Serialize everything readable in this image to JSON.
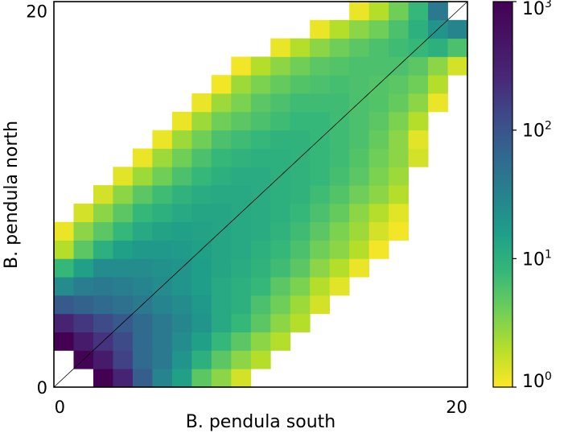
{
  "chart_data": {
    "type": "heatmap",
    "title": "",
    "xlabel": "B. pendula south",
    "ylabel": "B. pendula north",
    "xlim": [
      0,
      21
    ],
    "ylim": [
      0,
      21
    ],
    "x_ticks": [
      {
        "label": "0",
        "value": 0.3
      },
      {
        "label": "20",
        "value": 21
      }
    ],
    "y_ticks": [
      {
        "label": "0",
        "value": 0
      },
      {
        "label": "20",
        "value": 20.5
      }
    ],
    "diagonal_line": true,
    "colormap": "viridis_r",
    "color_scale": "log",
    "color_range": [
      1,
      1000
    ],
    "colorbar": {
      "position": "right",
      "ticks": [
        {
          "base": "10",
          "exp": "0",
          "value": 1
        },
        {
          "base": "10",
          "exp": "1",
          "value": 10
        },
        {
          "base": "10",
          "exp": "2",
          "value": 100
        },
        {
          "base": "10",
          "exp": "3",
          "value": 1000
        }
      ]
    },
    "rows": [
      [
        0,
        0,
        1000,
        300,
        80,
        30,
        15,
        5,
        3,
        1.5,
        0,
        0,
        0,
        0,
        0,
        0,
        0,
        0,
        0,
        0,
        0
      ],
      [
        0,
        900,
        400,
        150,
        60,
        40,
        20,
        10,
        5,
        3,
        2,
        0,
        0,
        0,
        0,
        0,
        0,
        0,
        0,
        0,
        0
      ],
      [
        1000,
        400,
        200,
        120,
        60,
        40,
        25,
        15,
        8,
        5,
        3,
        2,
        0,
        0,
        0,
        0,
        0,
        0,
        0,
        0,
        0
      ],
      [
        300,
        180,
        120,
        90,
        60,
        40,
        28,
        20,
        12,
        8,
        5,
        3,
        2,
        0,
        0,
        0,
        0,
        0,
        0,
        0,
        0
      ],
      [
        90,
        70,
        60,
        50,
        40,
        30,
        25,
        18,
        12,
        10,
        6,
        4,
        2.5,
        1.5,
        0,
        0,
        0,
        0,
        0,
        0,
        0
      ],
      [
        25,
        35,
        40,
        35,
        30,
        25,
        20,
        16,
        12,
        10,
        8,
        5,
        3.5,
        2,
        1.3,
        0,
        0,
        0,
        0,
        0,
        0
      ],
      [
        8,
        15,
        25,
        25,
        25,
        22,
        20,
        16,
        13,
        11,
        9,
        7,
        5,
        3,
        2,
        1.2,
        0,
        0,
        0,
        0,
        0
      ],
      [
        2,
        5,
        10,
        15,
        18,
        18,
        17,
        15,
        13,
        12,
        10,
        8,
        6,
        4,
        3,
        2,
        1.1,
        0,
        0,
        0,
        0
      ],
      [
        1.2,
        3,
        5,
        8,
        12,
        14,
        15,
        14,
        13,
        12,
        11,
        9,
        7,
        5,
        3.5,
        2.5,
        1.5,
        1.1,
        0,
        0,
        0
      ],
      [
        0,
        1.5,
        3,
        5,
        8,
        10,
        12,
        13,
        13,
        12,
        11,
        10,
        8,
        6,
        4.5,
        3,
        2,
        1.3,
        0,
        0,
        0
      ],
      [
        0,
        0,
        1.5,
        3,
        5,
        7,
        9,
        11,
        12,
        12,
        11,
        10,
        9,
        7,
        5.5,
        4,
        3,
        2,
        0,
        0,
        0
      ],
      [
        0,
        0,
        0,
        1.3,
        2.5,
        4,
        6,
        8,
        10,
        11,
        11,
        10,
        9,
        8,
        6.5,
        5,
        3.5,
        2.5,
        0,
        0,
        0
      ],
      [
        0,
        0,
        0,
        0,
        1.2,
        2.5,
        4,
        6,
        8,
        9,
        10,
        10,
        9,
        8,
        7,
        5.5,
        4,
        3,
        1.5,
        0,
        0
      ],
      [
        0,
        0,
        0,
        0,
        0,
        1.2,
        2.5,
        4,
        6,
        7,
        8,
        9,
        9,
        8,
        7,
        6,
        4.5,
        3,
        1.3,
        0,
        0
      ],
      [
        0,
        0,
        0,
        0,
        0,
        0,
        1.2,
        2.5,
        4,
        5,
        6,
        7,
        8,
        8,
        7,
        6,
        5,
        3.5,
        2,
        0,
        0
      ],
      [
        0,
        0,
        0,
        0,
        0,
        0,
        0,
        1.2,
        2.5,
        3.5,
        5,
        6,
        7,
        7,
        7,
        6,
        5.5,
        4.5,
        3,
        1.2,
        0
      ],
      [
        0,
        0,
        0,
        0,
        0,
        0,
        0,
        0,
        1.1,
        2.5,
        3.5,
        4.5,
        5.5,
        6,
        6.5,
        6,
        5.5,
        5,
        4,
        2,
        0
      ],
      [
        0,
        0,
        0,
        0,
        0,
        0,
        0,
        0,
        0,
        1.1,
        2,
        3,
        4,
        5,
        5.5,
        6,
        6,
        6,
        5,
        3,
        1.5
      ],
      [
        0,
        0,
        0,
        0,
        0,
        0,
        0,
        0,
        0,
        0,
        0,
        1.2,
        2,
        3,
        4,
        5,
        6,
        7,
        8,
        10,
        6
      ],
      [
        0,
        0,
        0,
        0,
        0,
        0,
        0,
        0,
        0,
        0,
        0,
        0,
        0,
        1.2,
        2,
        3,
        4,
        6,
        10,
        20,
        30
      ],
      [
        0,
        0,
        0,
        0,
        0,
        0,
        0,
        0,
        0,
        0,
        0,
        0,
        0,
        0,
        0,
        1.2,
        2,
        4,
        8,
        40,
        0
      ]
    ]
  }
}
